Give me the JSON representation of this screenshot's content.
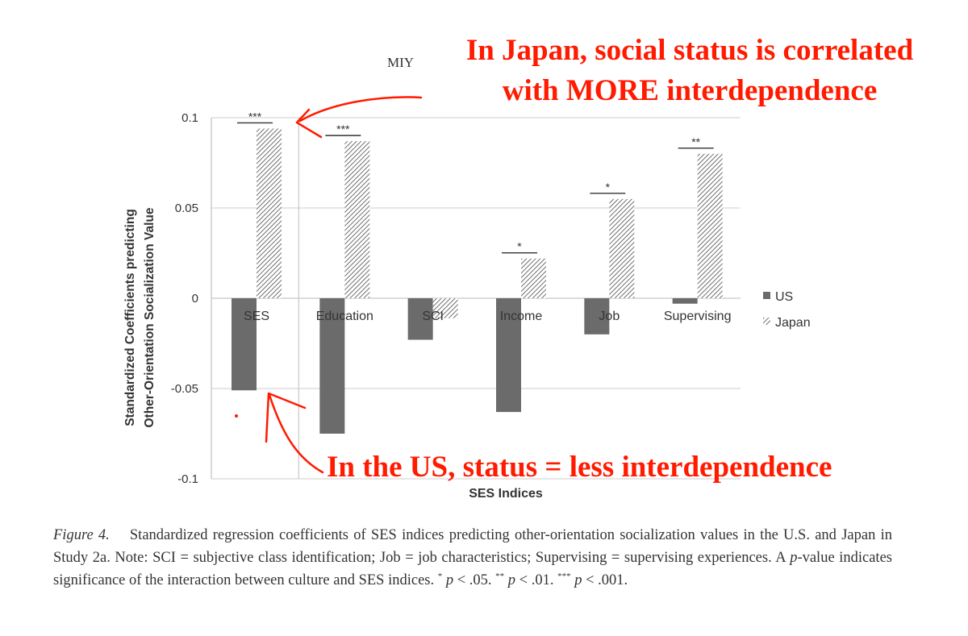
{
  "header_tag": "MIY",
  "annotations": {
    "japan_line1": "In Japan, social status is correlated",
    "japan_line2": "with MORE interdependence",
    "us": "In the US, status = less interdependence",
    "color": "#ff1a00"
  },
  "chart_data": {
    "type": "bar",
    "xlabel": "SES Indices",
    "ylabel_line1": "Standardized Coefficients predicting",
    "ylabel_line2": "Other-Orientation Socialization Value",
    "ylim": [
      -0.1,
      0.1
    ],
    "yticks": [
      {
        "v": 0.1,
        "label": "0.1"
      },
      {
        "v": 0.05,
        "label": "0.05"
      },
      {
        "v": 0,
        "label": "0"
      },
      {
        "v": -0.05,
        "label": "-0.05"
      },
      {
        "v": -0.1,
        "label": "-0.1"
      }
    ],
    "grid": true,
    "legend_position": "right",
    "categories": [
      "SES",
      "Education",
      "SCI",
      "Income",
      "Job",
      "Supervising"
    ],
    "series": [
      {
        "name": "US",
        "fill": "solid",
        "color": "#6b6b6b",
        "values": [
          -0.051,
          -0.075,
          -0.023,
          -0.063,
          -0.02,
          -0.003
        ]
      },
      {
        "name": "Japan",
        "fill": "hatched",
        "color": "#8a8a8a",
        "values": [
          0.094,
          0.087,
          -0.011,
          0.022,
          0.055,
          0.08
        ]
      }
    ],
    "significance": [
      "***",
      "***",
      "",
      "*",
      "*",
      "**"
    ]
  },
  "caption": {
    "figure_label": "Figure 4.",
    "text1": "Standardized regression coefficients of SES indices predicting other-orientation socialization values in the U.S. and Japan in Study 2a. Note: SCI = subjective class identification; Job = job characteristics; Supervising = supervising experiences. A ",
    "p_italic": "p",
    "text2": "-value indicates significance of the interaction between culture and SES indices. ",
    "star1": "*",
    "p1": " < .05. ",
    "star2": "**",
    "p2": " < .01. ",
    "star3": "***",
    "p3": " < .001."
  }
}
